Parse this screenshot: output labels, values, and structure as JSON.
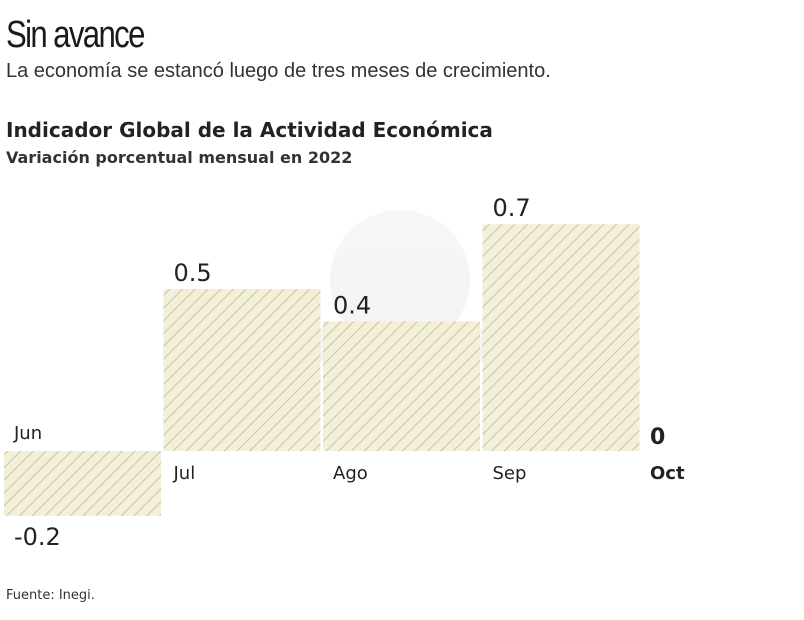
{
  "header": {
    "title": "Sin avance",
    "subtitle": "La economía se estancó luego de tres meses de crecimiento."
  },
  "source": "Fuente: Inegi.",
  "chart_data": {
    "type": "bar",
    "title": "Indicador Global de la Actividad Económica",
    "subtitle": "Variación porcentual mensual en 2022",
    "categories": [
      "Jun",
      "Jul",
      "Ago",
      "Sep",
      "Oct"
    ],
    "values": [
      -0.2,
      0.5,
      0.4,
      0.7,
      0
    ],
    "value_labels": [
      "-0.2",
      "0.5",
      "0.4",
      "0.7",
      "0"
    ],
    "bar_color": "#f3efd8",
    "hatch_color": "#c9c3a4",
    "grid": false
  }
}
